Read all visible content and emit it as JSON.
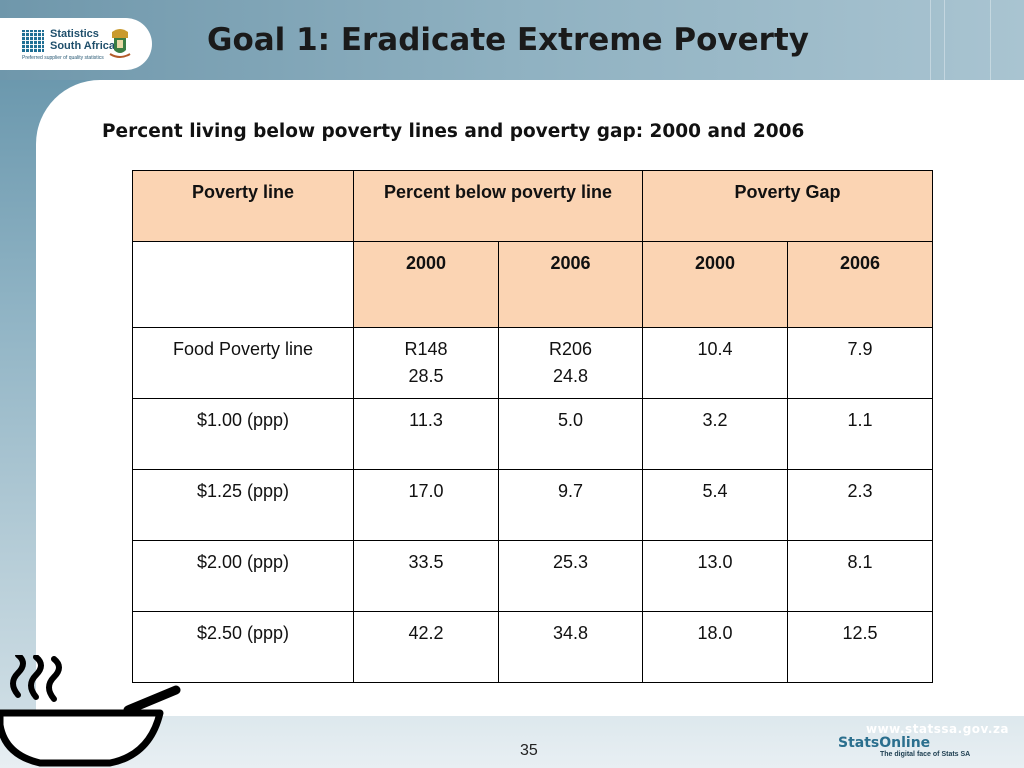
{
  "header": {
    "logo": {
      "line1": "Statistics",
      "line2": "South Africa",
      "tagline": "Preferred supplier of quality statistics"
    },
    "title": "Goal 1: Eradicate Extreme Poverty"
  },
  "main": {
    "subtitle": "Percent living below poverty lines and poverty gap: 2000 and 2006",
    "table": {
      "headers": {
        "poverty_line": "Poverty line",
        "percent_below": "Percent below poverty line",
        "poverty_gap": "Poverty Gap"
      },
      "years": [
        "2000",
        "2006",
        "2000",
        "2006"
      ],
      "rows": [
        {
          "label": "Food Poverty line",
          "pct2000": "R148",
          "pct2000b": "28.5",
          "pct2006": "R206",
          "pct2006b": "24.8",
          "gap2000": "10.4",
          "gap2006": "7.9"
        },
        {
          "label": "$1.00 (ppp)",
          "pct2000": "11.3",
          "pct2006": "5.0",
          "gap2000": "3.2",
          "gap2006": "1.1"
        },
        {
          "label": "$1.25 (ppp)",
          "pct2000": "17.0",
          "pct2006": "9.7",
          "gap2000": "5.4",
          "gap2006": "2.3"
        },
        {
          "label": "$2.00 (ppp)",
          "pct2000": "33.5",
          "pct2006": "25.3",
          "gap2000": "13.0",
          "gap2006": "8.1"
        },
        {
          "label": "$2.50 (ppp)",
          "pct2000": "42.2",
          "pct2006": "34.8",
          "gap2000": "18.0",
          "gap2006": "12.5"
        }
      ]
    }
  },
  "footer": {
    "page_number": "35",
    "url": "www.statssa.gov.za",
    "brand": "StatsOnline",
    "brand_tagline": "The digital face of Stats SA"
  },
  "colors": {
    "header_fill": "#fbd4b3",
    "background_blue": "#8fb3c4",
    "brand_blue": "#2b6f8e"
  },
  "icons": [
    "statistics-logo-icon",
    "coat-of-arms-icon",
    "steaming-bowl-icon"
  ]
}
